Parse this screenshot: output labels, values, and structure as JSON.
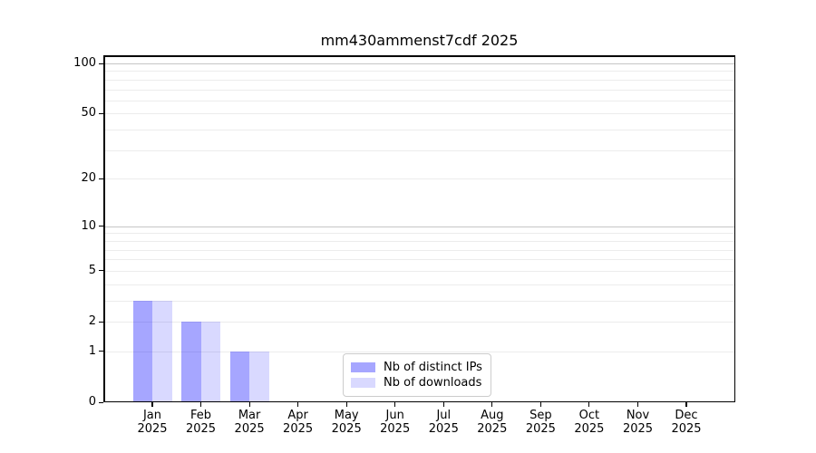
{
  "chart_data": {
    "type": "bar",
    "title": "mm430ammenst7cdf 2025",
    "categories": [
      "Jan",
      "Feb",
      "Mar",
      "Apr",
      "May",
      "Jun",
      "Jul",
      "Aug",
      "Sep",
      "Oct",
      "Nov",
      "Dec"
    ],
    "category_year": "2025",
    "series": [
      {
        "name": "Nb of distinct IPs",
        "color": "rgba(0,0,255,0.35)",
        "values": [
          3,
          2,
          1,
          0,
          0,
          0,
          0,
          0,
          0,
          0,
          0,
          0
        ]
      },
      {
        "name": "Nb of downloads",
        "color": "rgba(0,0,255,0.15)",
        "values": [
          3,
          2,
          1,
          0,
          0,
          0,
          0,
          0,
          0,
          0,
          0,
          0
        ]
      }
    ],
    "yscale": "log1p",
    "ylim": [
      0,
      105
    ],
    "ytick_values": [
      0,
      1,
      2,
      5,
      10,
      20,
      50,
      100
    ],
    "ytick_labels": [
      "0",
      "1",
      "2",
      "5",
      "10",
      "20",
      "50",
      "100"
    ],
    "grid": {
      "minor_values": [
        1,
        2,
        3,
        4,
        5,
        6,
        7,
        8,
        9,
        20,
        30,
        40,
        50,
        60,
        70,
        80,
        90
      ],
      "major_values": [
        10,
        100
      ],
      "minor_color": "#ececec",
      "major_color": "#c6c6c6"
    },
    "legend": {
      "entries": [
        "Nb of distinct IPs",
        "Nb of downloads"
      ],
      "position": "lower center"
    },
    "axis_color": "#000000",
    "background_color": "#ffffff"
  }
}
